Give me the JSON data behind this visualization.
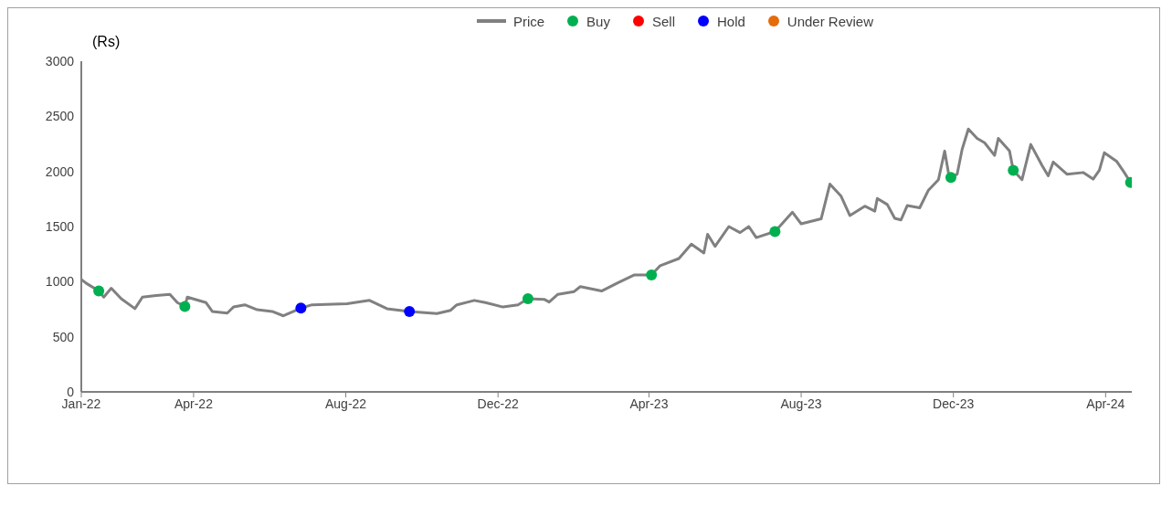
{
  "chart_data": {
    "type": "line",
    "ylabel": "(Rs)",
    "xlim": [
      "2022-01-01",
      "2024-04-22"
    ],
    "ylim": [
      0,
      3000
    ],
    "yticks": [
      0,
      500,
      1000,
      1500,
      2000,
      2500,
      3000
    ],
    "xticks": [
      {
        "value": "2022-01-01",
        "label": "Jan-22"
      },
      {
        "value": "2022-04-01",
        "label": "Apr-22"
      },
      {
        "value": "2022-08-01",
        "label": "Aug-22"
      },
      {
        "value": "2022-12-01",
        "label": "Dec-22"
      },
      {
        "value": "2023-04-01",
        "label": "Apr-23"
      },
      {
        "value": "2023-08-01",
        "label": "Aug-23"
      },
      {
        "value": "2023-12-01",
        "label": "Dec-23"
      },
      {
        "value": "2024-04-01",
        "label": "Apr-24"
      }
    ],
    "legend": "top",
    "grid": false,
    "line_style": "solid",
    "series": [
      {
        "name": "Price",
        "color": "#808080",
        "marker": "none",
        "x": [
          "2022-01-01",
          "2022-01-05",
          "2022-01-15",
          "2022-01-19",
          "2022-01-25",
          "2022-02-02",
          "2022-02-13",
          "2022-02-19",
          "2022-03-02",
          "2022-03-13",
          "2022-03-19",
          "2022-03-25",
          "2022-03-27",
          "2022-04-11",
          "2022-04-16",
          "2022-04-28",
          "2022-05-03",
          "2022-05-12",
          "2022-05-22",
          "2022-06-03",
          "2022-06-12",
          "2022-06-26",
          "2022-07-05",
          "2022-08-02",
          "2022-08-20",
          "2022-09-03",
          "2022-09-21",
          "2022-10-13",
          "2022-10-24",
          "2022-10-29",
          "2022-11-12",
          "2022-11-21",
          "2022-12-05",
          "2022-12-17",
          "2022-12-25",
          "2023-01-07",
          "2023-01-11",
          "2023-01-18",
          "2023-01-31",
          "2023-02-05",
          "2023-02-22",
          "2023-03-07",
          "2023-03-20",
          "2023-04-03",
          "2023-04-10",
          "2023-04-25",
          "2023-05-05",
          "2023-05-15",
          "2023-05-18",
          "2023-05-24",
          "2023-06-04",
          "2023-06-13",
          "2023-06-20",
          "2023-06-26",
          "2023-07-11",
          "2023-07-25",
          "2023-08-01",
          "2023-08-17",
          "2023-08-24",
          "2023-09-02",
          "2023-09-09",
          "2023-09-21",
          "2023-09-29",
          "2023-10-01",
          "2023-10-09",
          "2023-10-15",
          "2023-10-20",
          "2023-10-25",
          "2023-11-04",
          "2023-11-11",
          "2023-11-19",
          "2023-11-24",
          "2023-11-27",
          "2023-11-29",
          "2023-12-04",
          "2023-12-08",
          "2023-12-13",
          "2023-12-20",
          "2023-12-26",
          "2024-01-03",
          "2024-01-06",
          "2024-01-15",
          "2024-01-18",
          "2024-01-25",
          "2024-02-01",
          "2024-02-10",
          "2024-02-15",
          "2024-02-19",
          "2024-03-01",
          "2024-03-14",
          "2024-03-22",
          "2024-03-27",
          "2024-03-31",
          "2024-04-10",
          "2024-04-16",
          "2024-04-21"
        ],
        "values": [
          1020,
          985,
          915,
          860,
          940,
          845,
          755,
          860,
          875,
          885,
          810,
          775,
          860,
          810,
          730,
          715,
          770,
          790,
          745,
          730,
          690,
          760,
          790,
          800,
          830,
          755,
          730,
          710,
          740,
          790,
          830,
          810,
          770,
          790,
          845,
          840,
          815,
          885,
          910,
          955,
          915,
          990,
          1060,
          1060,
          1145,
          1210,
          1340,
          1260,
          1430,
          1320,
          1500,
          1445,
          1500,
          1400,
          1455,
          1630,
          1525,
          1570,
          1885,
          1775,
          1600,
          1685,
          1640,
          1755,
          1700,
          1575,
          1560,
          1690,
          1670,
          1830,
          1925,
          2185,
          1990,
          1945,
          1975,
          2200,
          2385,
          2300,
          2260,
          2145,
          2300,
          2185,
          2010,
          1925,
          2245,
          2055,
          1960,
          2085,
          1975,
          1990,
          1930,
          2010,
          2170,
          2090,
          1990,
          1900
        ]
      },
      {
        "name": "Buy",
        "type": "scatter",
        "color": "#00b050",
        "marker": "circle",
        "x": [
          "2022-01-15",
          "2022-03-25",
          "2022-12-25",
          "2023-04-03",
          "2023-07-11",
          "2023-11-29",
          "2024-01-18",
          "2024-04-21"
        ],
        "values": [
          915,
          775,
          845,
          1060,
          1455,
          1945,
          2010,
          1900
        ]
      },
      {
        "name": "Sell",
        "type": "scatter",
        "color": "#ff0000",
        "marker": "circle"
      },
      {
        "name": "Hold",
        "type": "scatter",
        "color": "#0000ff",
        "marker": "circle",
        "x": [
          "2022-06-26",
          "2022-09-21"
        ],
        "values": [
          760,
          730
        ]
      },
      {
        "name": "Under Review",
        "type": "scatter",
        "color": "#e46c0a",
        "marker": "circle"
      }
    ]
  }
}
